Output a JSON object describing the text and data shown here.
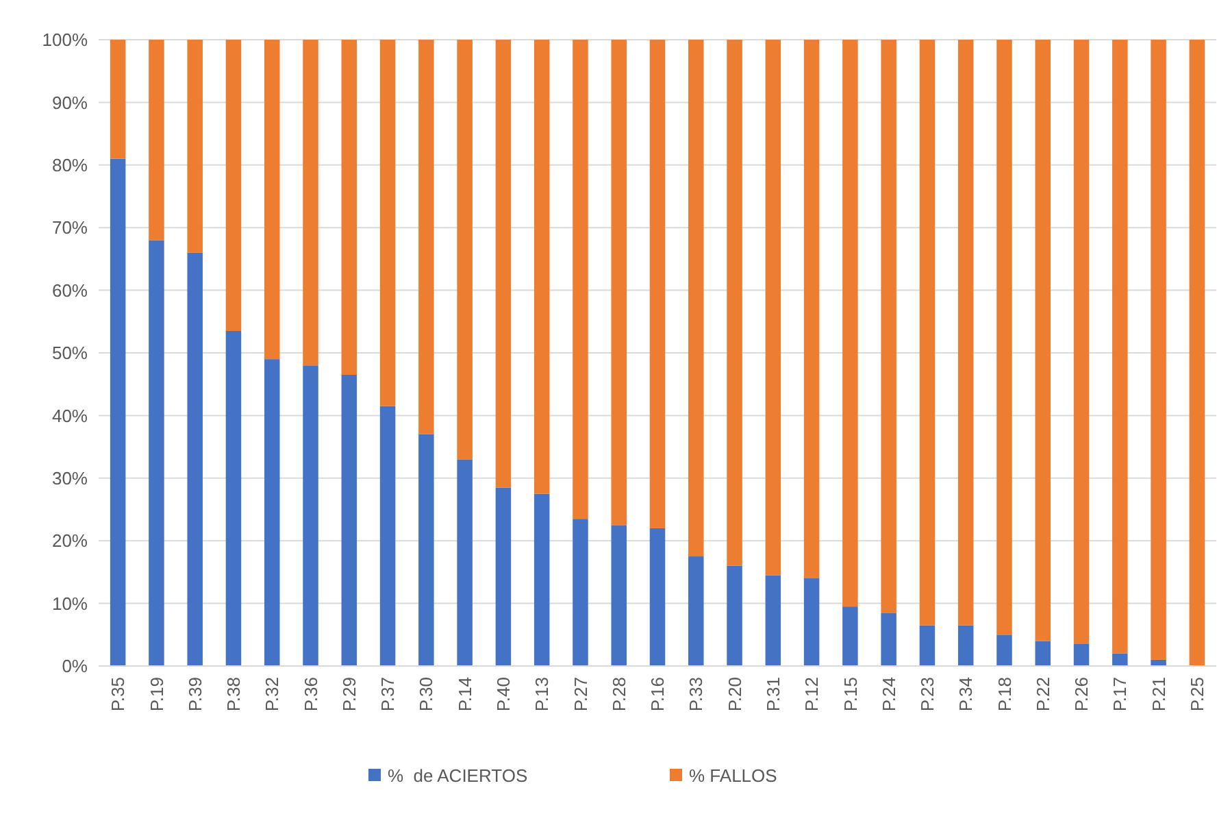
{
  "chart_data": {
    "type": "bar",
    "stacked": true,
    "categories": [
      "P.35",
      "P.19",
      "P.39",
      "P.38",
      "P.32",
      "P.36",
      "P.29",
      "P.37",
      "P.30",
      "P.14",
      "P.40",
      "P.13",
      "P.27",
      "P.28",
      "P.16",
      "P.33",
      "P.20",
      "P.31",
      "P.12",
      "P.15",
      "P.24",
      "P.23",
      "P.34",
      "P.18",
      "P.22",
      "P.26",
      "P.17",
      "P.21",
      "P.25"
    ],
    "series": [
      {
        "name": "%  de ACIERTOS",
        "color": "#4472c4",
        "values": [
          81,
          68,
          66,
          53.5,
          49,
          48,
          46.5,
          41.5,
          37,
          33,
          28.5,
          27.5,
          23.5,
          22.5,
          22,
          17.5,
          16,
          14.5,
          14,
          9.5,
          8.5,
          6.5,
          6.5,
          5,
          4,
          3.5,
          2,
          1,
          0
        ]
      },
      {
        "name": "% FALLOS",
        "color": "#ed7d31",
        "values": [
          19,
          32,
          34,
          46.5,
          51,
          52,
          53.5,
          58.5,
          63,
          67,
          71.5,
          72.5,
          76.5,
          77.5,
          78,
          82.5,
          84,
          85.5,
          86,
          90.5,
          91.5,
          93.5,
          93.5,
          95,
          96,
          96.5,
          98,
          99,
          100
        ]
      }
    ],
    "ylim": [
      0,
      100
    ],
    "yticks": [
      {
        "value": 0,
        "label": "0%"
      },
      {
        "value": 10,
        "label": "10%"
      },
      {
        "value": 20,
        "label": "20%"
      },
      {
        "value": 30,
        "label": "30%"
      },
      {
        "value": 40,
        "label": "40%"
      },
      {
        "value": 50,
        "label": "50%"
      },
      {
        "value": 60,
        "label": "60%"
      },
      {
        "value": 70,
        "label": "70%"
      },
      {
        "value": 80,
        "label": "80%"
      },
      {
        "value": 90,
        "label": "90%"
      },
      {
        "value": 100,
        "label": "100%"
      }
    ],
    "grid": "y",
    "legend": "bottom"
  }
}
